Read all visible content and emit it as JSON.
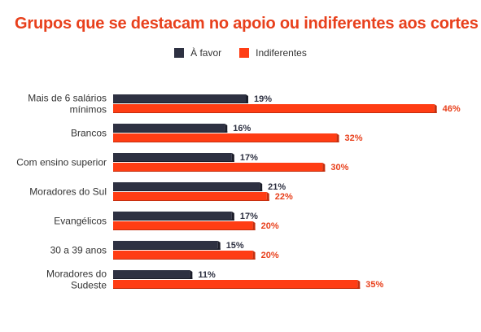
{
  "title": "Grupos que se destacam no apoio ou indiferentes aos cortes",
  "legend": [
    {
      "label": "À favor",
      "color": "#2e3142"
    },
    {
      "label": "Indiferentes",
      "color": "#ff3d14"
    }
  ],
  "chart_data": {
    "type": "bar",
    "orientation": "horizontal",
    "title": "Grupos que se destacam no apoio ou indiferentes aos cortes",
    "categories": [
      [
        "Mais de 6 salários",
        "mínimos"
      ],
      [
        "Brancos"
      ],
      [
        "Com ensino superior"
      ],
      [
        "Moradores do Sul"
      ],
      [
        "Evangélicos"
      ],
      [
        "30 a 39 anos"
      ],
      [
        "Moradores do",
        "Sudeste"
      ]
    ],
    "series": [
      {
        "name": "À favor",
        "color": "#2e3142",
        "label_color": "#2e3142",
        "values": [
          19,
          16,
          17,
          21,
          17,
          15,
          11
        ],
        "labels": [
          "19%",
          "16%",
          "17%",
          "21%",
          "17%",
          "15%",
          "11%"
        ]
      },
      {
        "name": "Indiferentes",
        "color": "#ff3d14",
        "label_color": "#e8401c",
        "values": [
          46,
          32,
          30,
          22,
          20,
          20,
          35
        ],
        "labels": [
          "46%",
          "32%",
          "30%",
          "22%",
          "20%",
          "20%",
          "35%"
        ]
      }
    ],
    "xlim": [
      0,
      60
    ],
    "legend_position": "top-center",
    "grid": false
  }
}
